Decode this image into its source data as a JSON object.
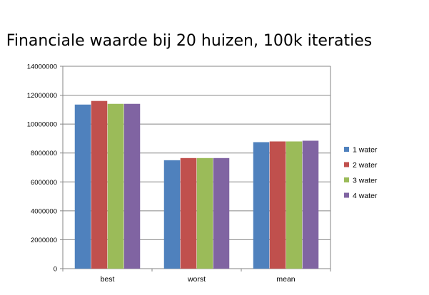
{
  "chart_data": {
    "type": "bar",
    "title": "Financiale waarde bij 20 huizen, 100k iteraties",
    "xlabel": "",
    "ylabel": "",
    "categories": [
      "best",
      "worst",
      "mean"
    ],
    "ylim": [
      0,
      14000000
    ],
    "yticks": [
      "0",
      "2000000",
      "4000000",
      "6000000",
      "8000000",
      "10000000",
      "12000000",
      "14000000"
    ],
    "grid": "horizontal",
    "legend_position": "right",
    "series": [
      {
        "name": "1 water",
        "color": "#4F81BD",
        "values": [
          11350000,
          7500000,
          8750000
        ]
      },
      {
        "name": "2 water",
        "color": "#C0504D",
        "values": [
          11600000,
          7650000,
          8800000
        ]
      },
      {
        "name": "3 water",
        "color": "#9BBB59",
        "values": [
          11400000,
          7650000,
          8800000
        ]
      },
      {
        "name": "4 water",
        "color": "#8064A2",
        "values": [
          11400000,
          7650000,
          8850000
        ]
      }
    ]
  }
}
